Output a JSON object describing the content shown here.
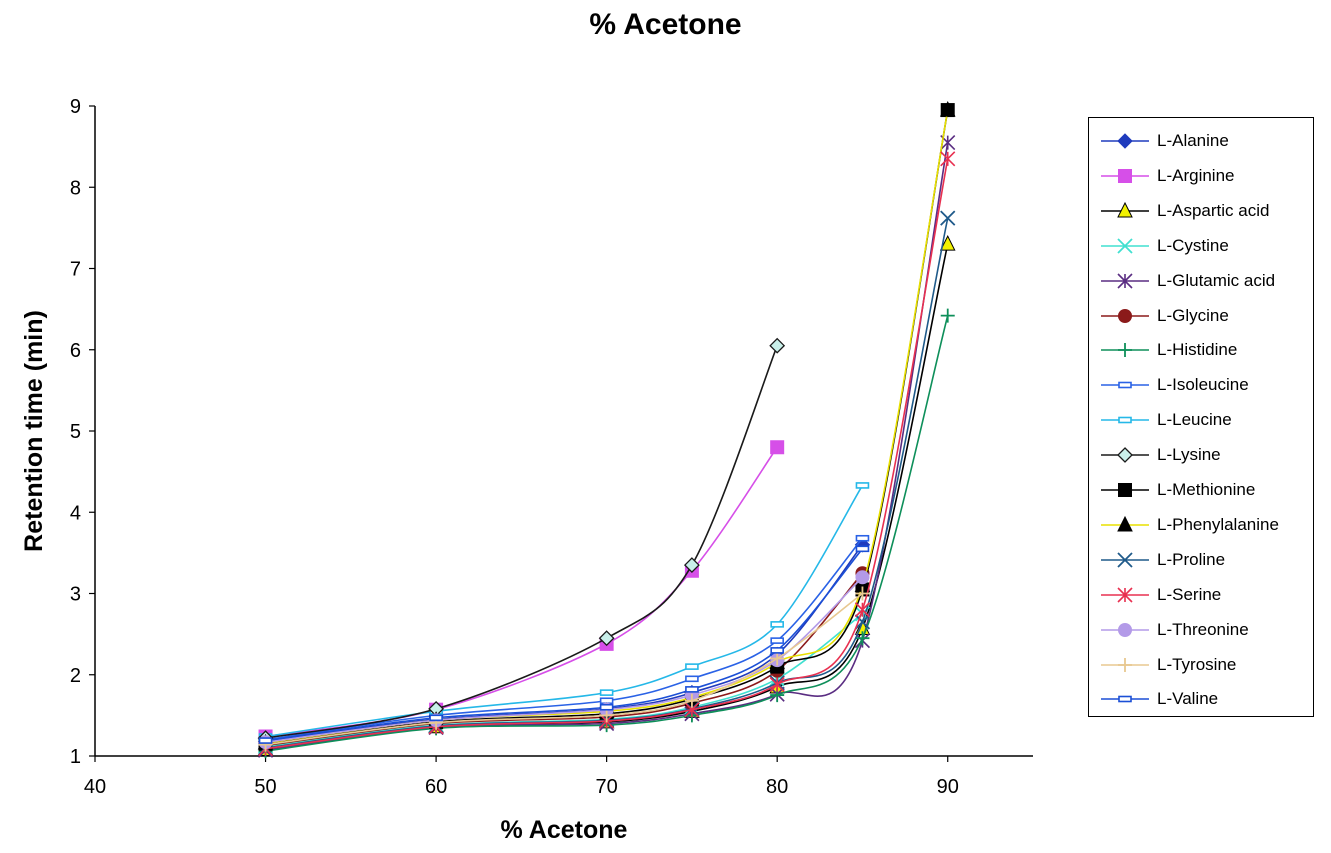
{
  "chart_data": {
    "type": "line",
    "title": "% Acetone",
    "xlabel": "% Acetone",
    "ylabel": "Retention time (min)",
    "xlim": [
      40,
      95
    ],
    "ylim": [
      1,
      9
    ],
    "x_ticks": [
      40,
      50,
      60,
      70,
      80,
      90
    ],
    "y_ticks": [
      1,
      2,
      3,
      4,
      5,
      6,
      7,
      8,
      9
    ],
    "grid": false,
    "legend_position": "right",
    "series": [
      {
        "name": "L-Alanine",
        "color": "#1f3bbd",
        "marker": "diamond",
        "x": [
          50,
          60,
          70,
          75,
          80,
          85
        ],
        "y": [
          1.18,
          1.45,
          1.58,
          1.78,
          2.25,
          3.6
        ]
      },
      {
        "name": "L-Arginine",
        "color": "#d64fe8",
        "marker": "square",
        "x": [
          50,
          60,
          70,
          75,
          80
        ],
        "y": [
          1.24,
          1.57,
          2.38,
          3.28,
          4.8
        ]
      },
      {
        "name": "L-Aspartic acid",
        "color": "#000000",
        "marker": "triangle",
        "marker_fill": "#f2f200",
        "x": [
          50,
          60,
          70,
          75,
          80,
          85,
          90
        ],
        "y": [
          1.08,
          1.36,
          1.42,
          1.55,
          1.85,
          2.57,
          7.3
        ]
      },
      {
        "name": "L-Cystine",
        "color": "#40e0d0",
        "marker": "x",
        "x": [
          50,
          60,
          70,
          75,
          80,
          85
        ],
        "y": [
          1.12,
          1.38,
          1.45,
          1.6,
          1.95,
          2.75
        ]
      },
      {
        "name": "L-Glutamic acid",
        "color": "#5a2d82",
        "marker": "star",
        "x": [
          50,
          60,
          70,
          75,
          80,
          85,
          90
        ],
        "y": [
          1.07,
          1.35,
          1.4,
          1.52,
          1.76,
          2.42,
          8.55
        ]
      },
      {
        "name": "L-Glycine",
        "color": "#8b1a1a",
        "marker": "circle",
        "x": [
          50,
          60,
          70,
          75,
          80,
          85
        ],
        "y": [
          1.13,
          1.4,
          1.48,
          1.65,
          2.05,
          3.25
        ]
      },
      {
        "name": "L-Histidine",
        "color": "#0e8f5a",
        "marker": "plus",
        "x": [
          50,
          60,
          70,
          75,
          80,
          85,
          90
        ],
        "y": [
          1.06,
          1.34,
          1.38,
          1.5,
          1.75,
          2.45,
          6.42
        ]
      },
      {
        "name": "L-Isoleucine",
        "color": "#2a62e6",
        "marker": "dash",
        "x": [
          50,
          60,
          70,
          75,
          80,
          85
        ],
        "y": [
          1.2,
          1.5,
          1.68,
          1.95,
          2.42,
          3.68
        ]
      },
      {
        "name": "L-Leucine",
        "color": "#25b8e8",
        "marker": "dash",
        "x": [
          50,
          60,
          70,
          75,
          80,
          85
        ],
        "y": [
          1.24,
          1.55,
          1.78,
          2.1,
          2.62,
          4.33
        ]
      },
      {
        "name": "L-Lysine",
        "color": "#1a1a1a",
        "marker": "diamond-open",
        "marker_fill": "#c9f0ea",
        "x": [
          50,
          60,
          70,
          75,
          80
        ],
        "y": [
          1.22,
          1.58,
          2.45,
          3.35,
          6.05
        ]
      },
      {
        "name": "L-Methionine",
        "color": "#000000",
        "marker": "square",
        "x": [
          50,
          60,
          70,
          75,
          80,
          85,
          90
        ],
        "y": [
          1.15,
          1.42,
          1.52,
          1.7,
          2.1,
          3.05,
          8.95
        ]
      },
      {
        "name": "L-Phenylalanine",
        "color": "#e8e000",
        "marker": "triangle",
        "marker_fill": "#000000",
        "x": [
          50,
          60,
          70,
          75,
          80,
          85,
          90
        ],
        "y": [
          1.16,
          1.44,
          1.55,
          1.72,
          2.15,
          3.1,
          8.95
        ]
      },
      {
        "name": "L-Proline",
        "color": "#1f5a8a",
        "marker": "x",
        "x": [
          50,
          60,
          70,
          75,
          80,
          85,
          90
        ],
        "y": [
          1.1,
          1.37,
          1.44,
          1.58,
          1.9,
          2.65,
          7.62
        ]
      },
      {
        "name": "L-Serine",
        "color": "#e83050",
        "marker": "star",
        "x": [
          50,
          60,
          70,
          75,
          80,
          85,
          90
        ],
        "y": [
          1.09,
          1.36,
          1.43,
          1.57,
          1.88,
          2.8,
          8.35
        ]
      },
      {
        "name": "L-Threonine",
        "color": "#b39ae8",
        "marker": "circle",
        "x": [
          50,
          60,
          70,
          75,
          80,
          85
        ],
        "y": [
          1.17,
          1.44,
          1.57,
          1.75,
          2.18,
          3.2
        ]
      },
      {
        "name": "L-Tyrosine",
        "color": "#e8c890",
        "marker": "plus",
        "x": [
          50,
          60,
          70,
          75,
          80,
          85
        ],
        "y": [
          1.14,
          1.41,
          1.5,
          1.68,
          2.2,
          3.0
        ]
      },
      {
        "name": "L-Valine",
        "color": "#1b4fd6",
        "marker": "dash",
        "x": [
          50,
          60,
          70,
          75,
          80,
          85
        ],
        "y": [
          1.19,
          1.47,
          1.6,
          1.82,
          2.3,
          3.55
        ]
      }
    ]
  }
}
